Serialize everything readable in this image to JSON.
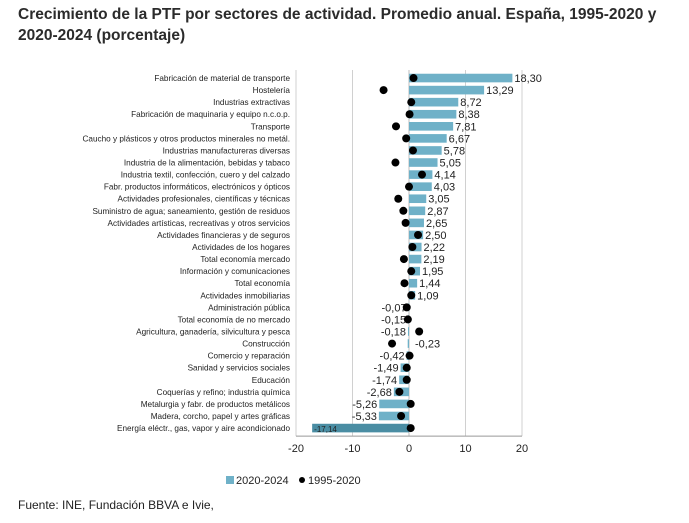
{
  "title": "Crecimiento de la PTF por sectores de actividad. Promedio anual. España, 1995-2020 y 2020-2024 (porcentaje)",
  "source": "Fuente:  INE, Fundación BBVA e Ivie,",
  "chart_data": {
    "type": "bar",
    "orientation": "horizontal",
    "title": "Crecimiento de la PTF por sectores de actividad. Promedio anual. España, 1995-2020 y 2020-2024 (porcentaje)",
    "xlabel": "",
    "ylabel": "",
    "xlim": [
      -20,
      20
    ],
    "xticks": [
      -20,
      -10,
      0,
      10,
      20
    ],
    "xtick_labels": [
      "-20",
      "-10",
      "0",
      "10",
      "20"
    ],
    "grid": "vertical",
    "legend_position": "bottom-center",
    "categories": [
      "Fabricación de material de transporte",
      "Hostelería",
      "Industrias extractivas",
      "Fabricación de maquinaria y equipo n.c.o.p.",
      "Transporte",
      "Caucho y plásticos y otros productos minerales no metál.",
      "Industrias manufactureras diversas",
      "Industria de la alimentación, bebidas y tabaco",
      "Industria textil, confección, cuero y del calzado",
      "Fabr. productos informáticos, electrónicos y ópticos",
      "Actividades profesionales, científicas y técnicas",
      "Suministro de agua; saneamiento, gestión de residuos",
      "Actividades artísticas, recreativas y otros servicios",
      "Actividades financieras y de seguros",
      "Actividades de los hogares",
      "Total economía mercado",
      "Información y comunicaciones",
      "Total economía",
      "Actividades inmobiliarias",
      "Administración pública",
      "Total economía de no mercado",
      "Agricultura, ganadería, silvicultura y pesca",
      "Construcción",
      "Comercio y reparación",
      "Sanidad y servicios sociales",
      "Educación",
      "Coquerías y refino; industria química",
      "Metalurgia y fabr. de productos metálicos",
      "Madera, corcho, papel y artes gráficas",
      "Energía eléctr., gas, vapor y aire acondicionado"
    ],
    "series": [
      {
        "name": "2020-2024",
        "type": "bar",
        "color": "#6fb1c8",
        "values": [
          18.3,
          13.29,
          8.72,
          8.38,
          7.81,
          6.67,
          5.78,
          5.05,
          4.14,
          4.03,
          3.05,
          2.87,
          2.65,
          2.5,
          2.22,
          2.19,
          1.95,
          1.44,
          1.09,
          -0.07,
          -0.15,
          -0.18,
          -0.23,
          -0.42,
          -1.49,
          -1.74,
          -2.68,
          -5.26,
          -5.33,
          -17.14
        ],
        "labels": [
          "18,30",
          "13,29",
          "8,72",
          "8,38",
          "7,81",
          "6,67",
          "5,78",
          "5,05",
          "4,14",
          "4,03",
          "3,05",
          "2,87",
          "2,65",
          "2,50",
          "2,22",
          "2,19",
          "1,95",
          "1,44",
          "1,09",
          "-0,07",
          "-0,15",
          "-0,18",
          "-0,23",
          "-0,42",
          "-1,49",
          "-1,74",
          "-2,68",
          "-5,26",
          "-5,33",
          "-17,14"
        ]
      },
      {
        "name": "1995-2020",
        "type": "scatter",
        "color": "#000000",
        "values": [
          0.8,
          -4.5,
          0.4,
          0.1,
          -2.3,
          -0.5,
          0.7,
          -2.4,
          2.3,
          0.0,
          -1.9,
          -1.0,
          -0.6,
          1.6,
          0.6,
          -0.9,
          0.4,
          -0.8,
          0.4,
          -0.4,
          -0.2,
          1.8,
          -3.0,
          0.1,
          -0.4,
          -0.4,
          -1.7,
          0.3,
          -1.4,
          0.3
        ]
      }
    ],
    "highlight": {
      "category": "Energía eléctr., gas, vapor y aire acondicionado",
      "color": "#4a8da3"
    }
  }
}
